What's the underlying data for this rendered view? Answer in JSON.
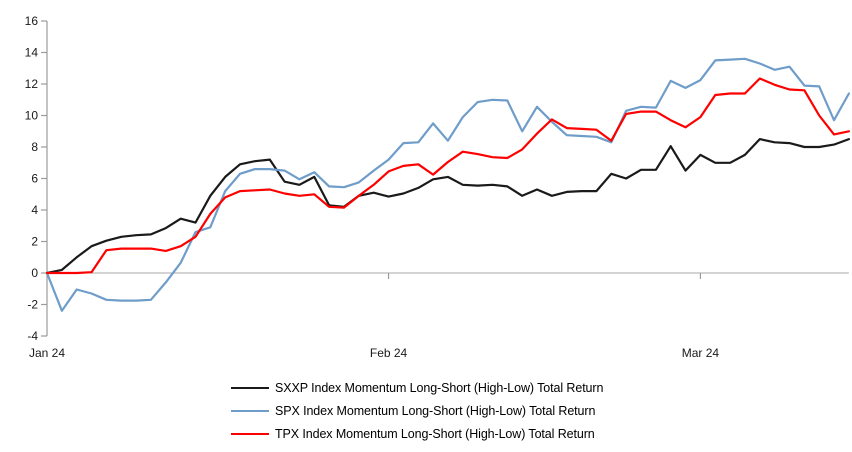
{
  "chart_data": {
    "type": "line",
    "title": "",
    "xlabel": "",
    "ylabel": "",
    "ylim": [
      -4,
      16
    ],
    "grid": "zero-line-only",
    "legend_position": "bottom",
    "y_axis": {
      "tick_labels": [
        "16",
        "14",
        "12",
        "10",
        "8",
        "6",
        "4",
        "2",
        "0",
        "-2",
        "-4"
      ],
      "tick_values": [
        16,
        14,
        12,
        10,
        8,
        6,
        4,
        2,
        0,
        -2,
        -4
      ]
    },
    "x_axis": {
      "ticks": [
        {
          "label": "Jan 24",
          "index": 0,
          "mark": false
        },
        {
          "label": "Feb 24",
          "index": 23,
          "mark": true
        },
        {
          "label": "Mar 24",
          "index": 44,
          "mark": true
        }
      ]
    },
    "colors": {
      "axis": "#9b9b9b",
      "zero_line": "#a8a8a8",
      "label_text": "#1a1a1a"
    },
    "series": [
      {
        "name": "SXXP Index Momentum Long-Short (High-Low) Total Return",
        "color": "#1a1a1a",
        "values": [
          0,
          0.2,
          1.0,
          1.7,
          2.05,
          2.3,
          2.4,
          2.45,
          2.85,
          3.45,
          3.2,
          4.9,
          6.1,
          6.9,
          7.1,
          7.2,
          5.8,
          5.6,
          6.1,
          4.3,
          4.2,
          4.9,
          5.1,
          4.85,
          5.05,
          5.4,
          5.95,
          6.1,
          5.6,
          5.55,
          5.6,
          5.5,
          4.9,
          5.3,
          4.9,
          5.15,
          5.2,
          5.2,
          6.3,
          6.0,
          6.55,
          6.55,
          8.05,
          6.5,
          7.5,
          7.0,
          7.0,
          7.5,
          8.5,
          8.3,
          8.25,
          8.0,
          8.0,
          8.15,
          8.5
        ]
      },
      {
        "name": "SPX Index Momentum Long-Short (High-Low) Total Return",
        "color": "#6f9dca",
        "values": [
          0,
          -2.4,
          -1.05,
          -1.3,
          -1.7,
          -1.75,
          -1.75,
          -1.7,
          -0.6,
          0.65,
          2.6,
          2.9,
          5.2,
          6.3,
          6.6,
          6.6,
          6.5,
          5.95,
          6.4,
          5.5,
          5.45,
          5.75,
          6.5,
          7.2,
          8.25,
          8.3,
          9.5,
          8.4,
          9.9,
          10.85,
          11.0,
          10.95,
          9.0,
          10.55,
          9.6,
          8.75,
          8.7,
          8.65,
          8.3,
          10.3,
          10.55,
          10.5,
          12.2,
          11.75,
          12.25,
          13.5,
          13.55,
          13.6,
          13.3,
          12.9,
          13.1,
          11.9,
          11.85,
          9.7,
          11.4
        ]
      },
      {
        "name": "TPX Index Momentum Long-Short (High-Low) Total Return",
        "color": "#fe0000",
        "values": [
          0,
          0,
          0,
          0.05,
          1.45,
          1.55,
          1.55,
          1.55,
          1.4,
          1.7,
          2.3,
          3.75,
          4.8,
          5.2,
          5.25,
          5.3,
          5.05,
          4.9,
          5.0,
          4.2,
          4.15,
          4.9,
          5.6,
          6.45,
          6.8,
          6.9,
          6.25,
          7.05,
          7.7,
          7.55,
          7.35,
          7.3,
          7.85,
          8.85,
          9.75,
          9.2,
          9.15,
          9.1,
          8.4,
          10.1,
          10.25,
          10.25,
          9.7,
          9.25,
          9.9,
          11.3,
          11.4,
          11.4,
          12.35,
          11.95,
          11.65,
          11.6,
          10.0,
          8.8,
          9.0
        ]
      }
    ]
  }
}
